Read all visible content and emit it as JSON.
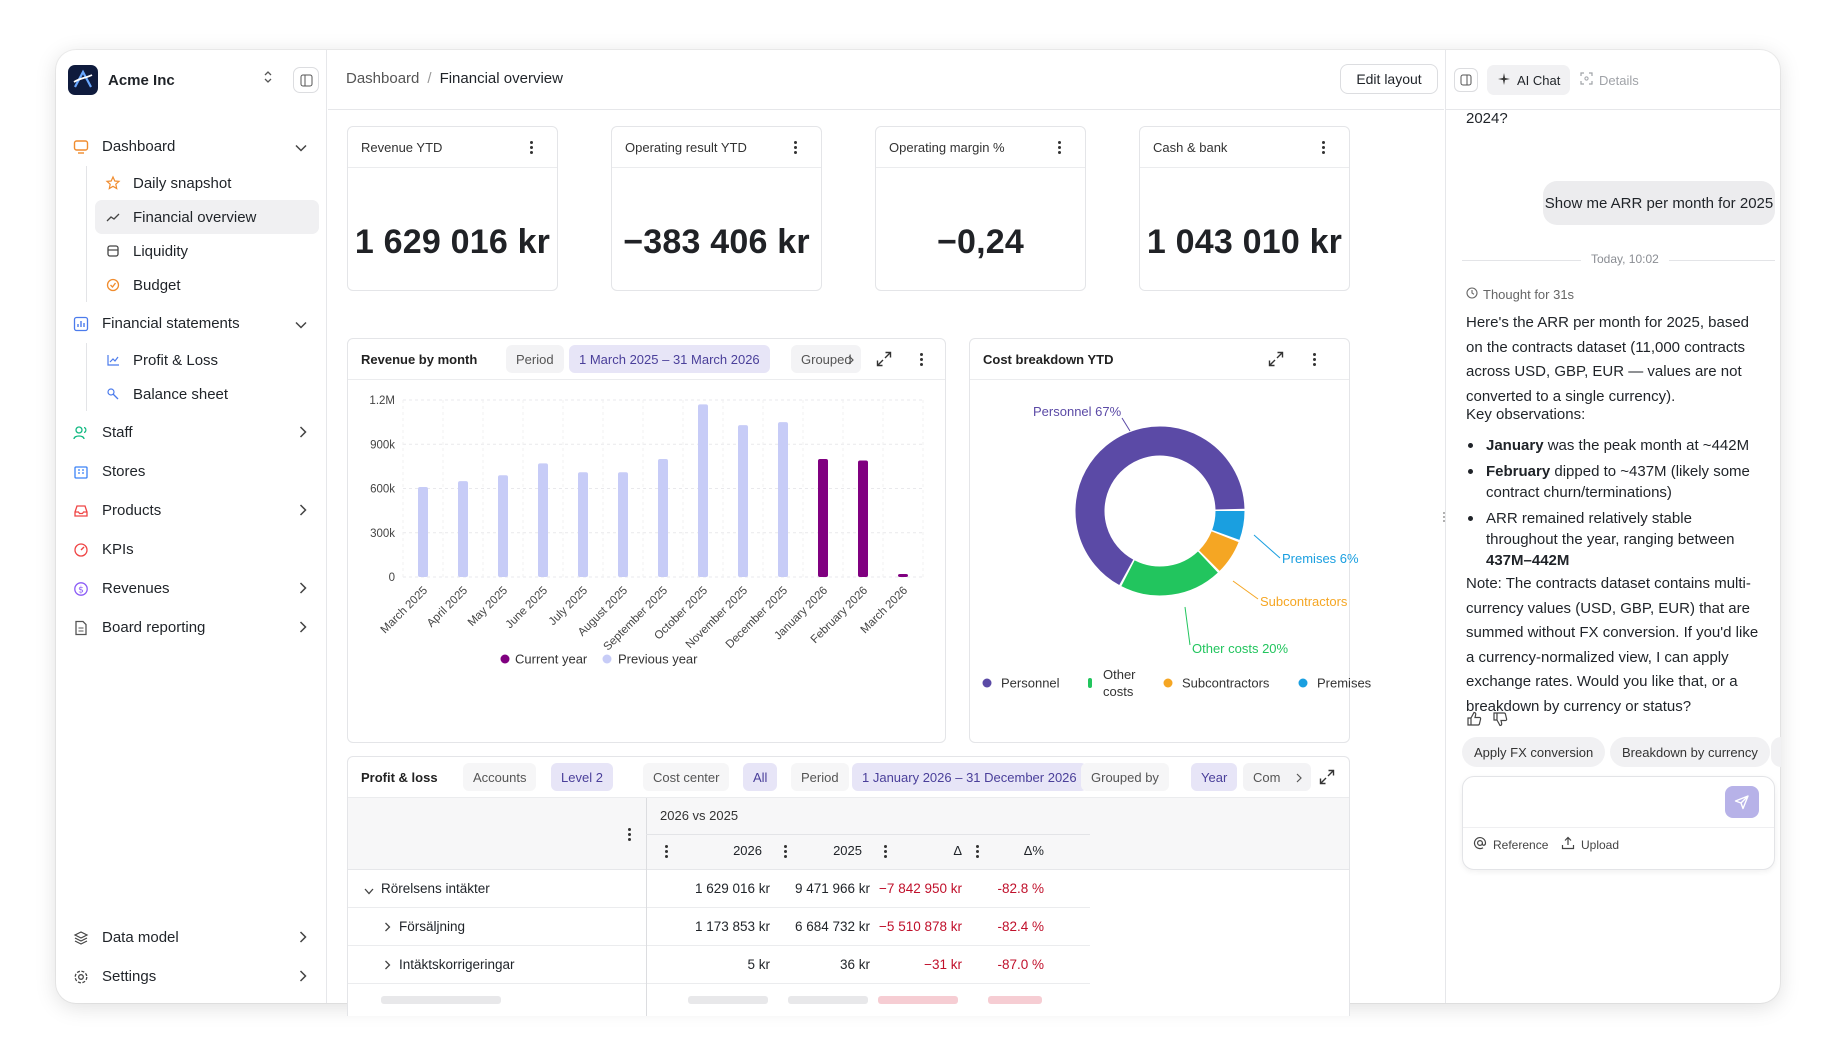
{
  "org": {
    "name": "Acme Inc"
  },
  "nav": {
    "dashboard": "Dashboard",
    "daily_snapshot": "Daily snapshot",
    "financial_overview": "Financial overview",
    "liquidity": "Liquidity",
    "budget": "Budget",
    "financial_statements": "Financial statements",
    "profit_loss": "Profit & Loss",
    "balance_sheet": "Balance sheet",
    "staff": "Staff",
    "stores": "Stores",
    "products": "Products",
    "kpis": "KPIs",
    "revenues": "Revenues",
    "board_reporting": "Board reporting",
    "data_model": "Data model",
    "settings": "Settings"
  },
  "breadcrumb": {
    "root": "Dashboard",
    "sep": "/",
    "current": "Financial overview"
  },
  "toolbar": {
    "edit_layout": "Edit layout"
  },
  "kpis": [
    {
      "label": "Revenue YTD",
      "value": "1 629 016 kr"
    },
    {
      "label": "Operating result YTD",
      "value": "−383 406 kr"
    },
    {
      "label": "Operating margin %",
      "value": "−0,24"
    },
    {
      "label": "Cash & bank",
      "value": "1 043 010 kr"
    }
  ],
  "revenue_chart": {
    "title": "Revenue by month",
    "period_label": "Period",
    "period_value": "1 March 2025 – 31 March 2026",
    "grouped_label": "Grouped"
  },
  "cost_chart": {
    "title": "Cost breakdown YTD"
  },
  "chart_data": [
    {
      "type": "bar",
      "title": "Revenue by month",
      "categories": [
        "March 2025",
        "April 2025",
        "May 2025",
        "June 2025",
        "July 2025",
        "August 2025",
        "September 2025",
        "October 2025",
        "November 2025",
        "December 2025",
        "January 2026",
        "February 2026",
        "March 2026"
      ],
      "y_ticks": [
        "0",
        "300k",
        "600k",
        "900k",
        "1.2M"
      ],
      "ylim": [
        0,
        1200000
      ],
      "series": [
        {
          "name": "Previous year",
          "color": "#c7ccf7",
          "values": [
            610000,
            650000,
            690000,
            770000,
            710000,
            710000,
            800000,
            1170000,
            1030000,
            1050000,
            null,
            null,
            null
          ]
        },
        {
          "name": "Current year",
          "color": "#800080",
          "values": [
            null,
            null,
            null,
            null,
            null,
            null,
            null,
            null,
            null,
            null,
            800000,
            790000,
            20000
          ]
        }
      ],
      "legend": "bottom",
      "grid": true
    },
    {
      "type": "pie",
      "title": "Cost breakdown YTD",
      "slices": [
        {
          "name": "Personnel",
          "value": 67,
          "label": "Personnel 67%",
          "color": "#5b4aa6"
        },
        {
          "name": "Premises",
          "value": 6,
          "label": "Premises 6%",
          "color": "#1a9fe0"
        },
        {
          "name": "Subcontractors",
          "value": 7,
          "label": "Subcontractors",
          "color": "#f5a623"
        },
        {
          "name": "Other costs",
          "value": 20,
          "label": "Other costs 20%",
          "color": "#22c55e"
        }
      ],
      "legend": [
        "Personnel",
        "Other costs",
        "Subcontractors",
        "Premises"
      ]
    }
  ],
  "legend_labels": {
    "current": "Current year",
    "previous": "Previous year",
    "personnel": "Personnel",
    "other_l1": "Other",
    "other_l2": "costs",
    "subcontractors": "Subcontractors",
    "premises": "Premises"
  },
  "pl": {
    "title": "Profit & loss",
    "accounts_label": "Accounts",
    "accounts_value": "Level 2",
    "cost_center_label": "Cost center",
    "cost_center_value": "All",
    "period_label": "Period",
    "period_value": "1 January 2026 – 31 December 2026",
    "grouped_label": "Grouped by",
    "grouped_value": "Year",
    "compare_label": "Com",
    "group_header": "2026 vs 2025",
    "columns": [
      "2026",
      "2025",
      "Δ",
      "Δ%"
    ],
    "rows": [
      {
        "label": "Rörelsens intäkter",
        "c2026": "1 629 016 kr",
        "c2025": "9 471 966 kr",
        "delta": "−7 842 950 kr",
        "pct": "-82.8 %"
      },
      {
        "label": "Försäljning",
        "c2026": "1 173 853 kr",
        "c2025": "6 684 732 kr",
        "delta": "−5 510 878 kr",
        "pct": "-82.4 %"
      },
      {
        "label": "Intäktskorrigeringar",
        "c2026": "5 kr",
        "c2025": "36 kr",
        "delta": "−31 kr",
        "pct": "-87.0 %"
      }
    ]
  },
  "chat": {
    "tab_ai": "AI Chat",
    "tab_details": "Details",
    "prev_text": "2024?",
    "user_msg": "Show me ARR per month for 2025",
    "timestamp": "Today, 10:02",
    "thought": "Thought for 31s",
    "intro": "Here's the ARR per month for 2025, based on the contracts dataset (11,000 contracts across USD, GBP, EUR — values are not converted to a single currency).",
    "key_obs": "Key observations:",
    "b1_bold": "January",
    "b1_rest": " was the peak month at ~442M",
    "b2_bold": "February",
    "b2_rest": " dipped to ~437M (likely some contract churn/terminations)",
    "b3_rest": "ARR remained relatively stable throughout the year, ranging between ",
    "b3_bold": "437M–442M",
    "note": "Note: The contracts dataset contains multi-currency values (USD, GBP, EUR) that are summed without FX conversion. If you'd like a currency-normalized view, I can apply exchange rates. Would you like that, or a breakdown by currency or status?",
    "suggest_1": "Apply FX conversion",
    "suggest_2": "Breakdown by currency",
    "reference": "Reference",
    "upload": "Upload"
  }
}
